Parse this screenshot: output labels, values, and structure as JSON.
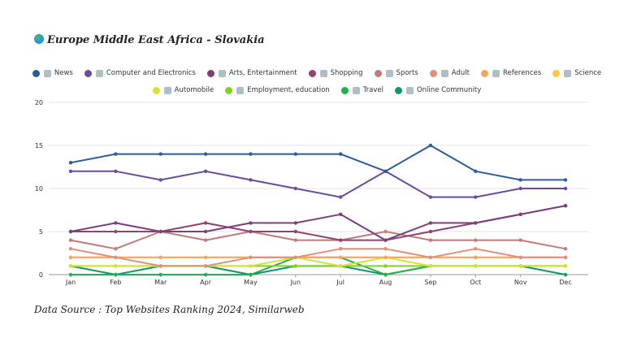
{
  "header": {
    "title": "Europe Middle East Africa - Slovakia"
  },
  "footer": {
    "source": "Data Source : Top Websites Ranking 2024, Similarweb"
  },
  "icons": {
    "title": "globe-icon"
  },
  "chart_data": {
    "type": "line",
    "title": "Europe Middle East Africa - Slovakia",
    "xlabel": "",
    "ylabel": "",
    "ylim": [
      0,
      20
    ],
    "yticks": [
      0,
      5,
      10,
      15,
      20
    ],
    "grid": true,
    "legend_position": "top",
    "categories": [
      "Jan",
      "Feb",
      "Mar",
      "Apr",
      "May",
      "Jun",
      "Jul",
      "Aug",
      "Sep",
      "Oct",
      "Nov",
      "Dec"
    ],
    "series": [
      {
        "name": "News",
        "icon": "newspaper-icon",
        "color": "#2c5aa0",
        "values": [
          13,
          14,
          14,
          14,
          14,
          14,
          14,
          12,
          15,
          12,
          11,
          11
        ]
      },
      {
        "name": "Computer and Electronics",
        "icon": "computer-icon",
        "color": "#6a4c9c",
        "values": [
          12,
          12,
          11,
          12,
          11,
          10,
          9,
          12,
          9,
          9,
          10,
          10
        ]
      },
      {
        "name": "Arts, Entertainment",
        "icon": "artist-icon",
        "color": "#7b3f7a",
        "values": [
          5,
          6,
          5,
          5,
          6,
          6,
          7,
          4,
          6,
          6,
          7,
          8
        ]
      },
      {
        "name": "Shopping",
        "icon": "cart-icon",
        "color": "#8e4470",
        "values": [
          5,
          5,
          5,
          6,
          5,
          5,
          4,
          4,
          5,
          6,
          7,
          8
        ]
      },
      {
        "name": "Sports",
        "icon": "sports-icon",
        "color": "#c47a7a",
        "values": [
          4,
          3,
          5,
          4,
          5,
          4,
          4,
          5,
          4,
          4,
          4,
          3
        ]
      },
      {
        "name": "Adult",
        "icon": "adult-icon",
        "color": "#e0907a",
        "values": [
          3,
          2,
          1,
          1,
          2,
          2,
          3,
          3,
          2,
          3,
          2,
          2
        ]
      },
      {
        "name": "References",
        "icon": "book-icon",
        "color": "#f5a55a",
        "values": [
          2,
          2,
          2,
          2,
          2,
          2,
          2,
          2,
          2,
          2,
          2,
          2
        ]
      },
      {
        "name": "Science",
        "icon": "science-icon",
        "color": "#f7c948",
        "values": [
          2,
          2,
          2,
          2,
          2,
          2,
          2,
          2,
          2,
          2,
          2,
          2
        ]
      },
      {
        "name": "Automobile",
        "icon": "car-icon",
        "color": "#d9e03a",
        "values": [
          1,
          1,
          1,
          1,
          1,
          2,
          1,
          2,
          1,
          1,
          1,
          1
        ]
      },
      {
        "name": "Employment, education",
        "icon": "briefcase-icon",
        "color": "#7ed321",
        "values": [
          1,
          1,
          1,
          1,
          1,
          1,
          1,
          1,
          1,
          1,
          1,
          1
        ]
      },
      {
        "name": "Travel",
        "icon": "luggage-icon",
        "color": "#22b04a",
        "values": [
          0,
          0,
          0,
          0,
          0,
          2,
          2,
          0,
          1,
          1,
          1,
          1
        ]
      },
      {
        "name": "Online Community",
        "icon": "community-icon",
        "color": "#12966b",
        "values": [
          1,
          0,
          1,
          1,
          0,
          1,
          1,
          0,
          1,
          1,
          1,
          0
        ]
      }
    ]
  }
}
